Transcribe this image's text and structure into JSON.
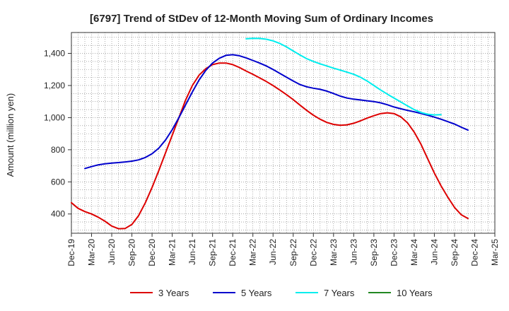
{
  "chart_data": {
    "type": "line",
    "title": "[6797]  Trend of StDev of 12-Month Moving Sum of Ordinary Incomes",
    "xlabel": "",
    "ylabel": "Amount (million yen)",
    "ylim": [
      280,
      1530
    ],
    "yticks": [
      400,
      600,
      800,
      1000,
      1200,
      1400
    ],
    "ytick_labels": [
      "400",
      "600",
      "800",
      "1,000",
      "1,200",
      "1,400"
    ],
    "x_tick_labels": [
      "Dec-19",
      "Mar-20",
      "Jun-20",
      "Sep-20",
      "Dec-20",
      "Mar-21",
      "Jun-21",
      "Sep-21",
      "Dec-21",
      "Mar-22",
      "Jun-22",
      "Sep-22",
      "Dec-22",
      "Mar-23",
      "Jun-23",
      "Sep-23",
      "Dec-23",
      "Mar-24",
      "Jun-24",
      "Sep-24",
      "Dec-24",
      "Mar-25"
    ],
    "x_months_total": 63,
    "grid": true,
    "legend_position": "bottom",
    "series": [
      {
        "name": "3 Years",
        "color": "#dd0000",
        "start_month": 0,
        "values": [
          470,
          435,
          415,
          400,
          380,
          355,
          325,
          308,
          310,
          335,
          390,
          470,
          565,
          670,
          780,
          890,
          1000,
          1110,
          1200,
          1265,
          1305,
          1330,
          1340,
          1340,
          1330,
          1312,
          1290,
          1270,
          1248,
          1225,
          1200,
          1172,
          1143,
          1112,
          1078,
          1045,
          1015,
          990,
          970,
          958,
          952,
          955,
          965,
          980,
          997,
          1012,
          1025,
          1030,
          1025,
          1005,
          968,
          910,
          835,
          745,
          655,
          575,
          505,
          440,
          395,
          372
        ]
      },
      {
        "name": "5 Years",
        "color": "#0000cc",
        "start_month": 2,
        "values": [
          683,
          695,
          706,
          712,
          717,
          720,
          724,
          729,
          737,
          752,
          775,
          810,
          860,
          925,
          1000,
          1080,
          1160,
          1235,
          1295,
          1340,
          1370,
          1388,
          1392,
          1385,
          1372,
          1356,
          1340,
          1322,
          1300,
          1276,
          1252,
          1228,
          1206,
          1192,
          1183,
          1176,
          1165,
          1150,
          1134,
          1122,
          1115,
          1110,
          1105,
          1100,
          1092,
          1080,
          1066,
          1055,
          1045,
          1036,
          1026,
          1015,
          1003,
          990,
          975,
          960,
          940,
          922
        ]
      },
      {
        "name": "7 Years",
        "color": "#00eeee",
        "start_month": 26,
        "values": [
          1491,
          1494,
          1493,
          1488,
          1478,
          1462,
          1440,
          1415,
          1390,
          1367,
          1350,
          1335,
          1322,
          1308,
          1296,
          1283,
          1270,
          1252,
          1228,
          1200,
          1172,
          1146,
          1122,
          1098,
          1073,
          1050,
          1032,
          1021,
          1017,
          1018
        ]
      },
      {
        "name": "10 Years",
        "color": "#228822",
        "start_month": 0,
        "values": []
      }
    ]
  }
}
